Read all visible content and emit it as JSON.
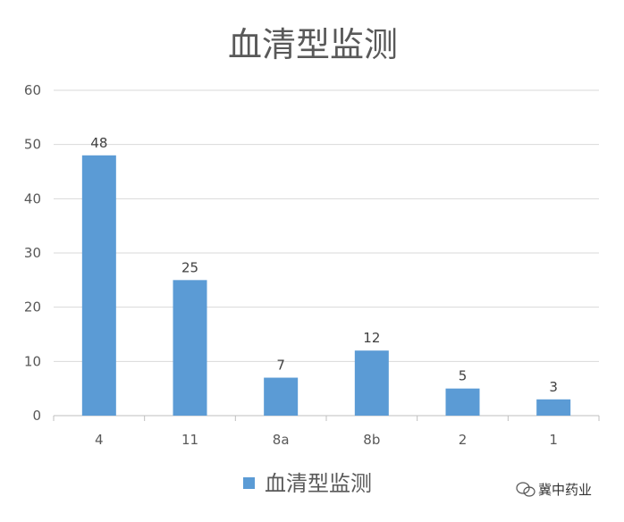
{
  "chart_data": {
    "type": "bar",
    "title": "血清型监测",
    "categories": [
      "4",
      "11",
      "8a",
      "8b",
      "2",
      "1"
    ],
    "series": [
      {
        "name": "血清型监测",
        "values": [
          48,
          25,
          7,
          12,
          5,
          3
        ]
      }
    ],
    "ylim": [
      0,
      60
    ],
    "yticks": [
      0,
      10,
      20,
      30,
      40,
      50,
      60
    ],
    "grid": true,
    "legend": "bottom",
    "bar_color": "#5b9bd5",
    "data_labels": true
  },
  "watermark": {
    "text": "冀中药业"
  }
}
